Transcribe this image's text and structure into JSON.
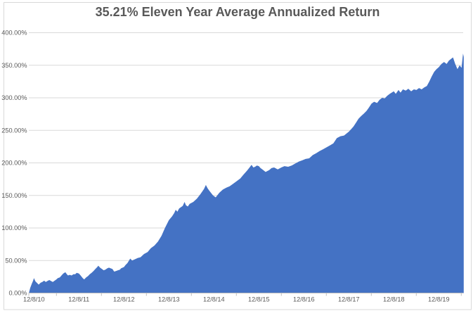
{
  "chart_data": {
    "type": "area",
    "title": "35.21% Eleven Year Average Annualized Return",
    "xlabel": "",
    "ylabel": "",
    "ylim": [
      0,
      400
    ],
    "y_tick_step": 50,
    "grid": true,
    "legend": false,
    "y_tick_labels": [
      "400.00%",
      "350.00%",
      "300.00%",
      "250.00%",
      "200.00%",
      "150.00%",
      "100.00%",
      "50.00%",
      "0.00%"
    ],
    "x_tick_labels": [
      "12/8/10",
      "12/8/11",
      "12/8/12",
      "12/8/13",
      "12/8/14",
      "12/8/15",
      "12/8/16",
      "12/8/17",
      "12/8/18",
      "12/8/19"
    ],
    "x_origin_date": "2010-12-08",
    "series": [
      {
        "points": [
          [
            "2010-10-28",
            0
          ],
          [
            "2010-11-08",
            8
          ],
          [
            "2010-11-20",
            14
          ],
          [
            "2010-12-01",
            19
          ],
          [
            "2010-12-08",
            23
          ],
          [
            "2010-12-20",
            18
          ],
          [
            "2011-01-05",
            15
          ],
          [
            "2011-01-15",
            13
          ],
          [
            "2011-02-01",
            16
          ],
          [
            "2011-02-14",
            17
          ],
          [
            "2011-03-01",
            19
          ],
          [
            "2011-03-14",
            17
          ],
          [
            "2011-04-01",
            19
          ],
          [
            "2011-04-12",
            20
          ],
          [
            "2011-05-01",
            18
          ],
          [
            "2011-05-10",
            17
          ],
          [
            "2011-06-01",
            20
          ],
          [
            "2011-06-08",
            21
          ],
          [
            "2011-06-20",
            23
          ],
          [
            "2011-07-06",
            24
          ],
          [
            "2011-07-20",
            27
          ],
          [
            "2011-08-03",
            30
          ],
          [
            "2011-08-20",
            32
          ],
          [
            "2011-09-01",
            29
          ],
          [
            "2011-09-11",
            27
          ],
          [
            "2011-09-25",
            28
          ],
          [
            "2011-10-10",
            27
          ],
          [
            "2011-10-25",
            29
          ],
          [
            "2011-11-08",
            29
          ],
          [
            "2011-11-20",
            31
          ],
          [
            "2011-12-08",
            30
          ],
          [
            "2011-12-22",
            27
          ],
          [
            "2012-01-08",
            23
          ],
          [
            "2012-01-20",
            21
          ],
          [
            "2012-02-05",
            24
          ],
          [
            "2012-02-20",
            26
          ],
          [
            "2012-03-05",
            29
          ],
          [
            "2012-03-20",
            31
          ],
          [
            "2012-04-05",
            34
          ],
          [
            "2012-04-20",
            37
          ],
          [
            "2012-05-05",
            40
          ],
          [
            "2012-05-14",
            42
          ],
          [
            "2012-05-28",
            39
          ],
          [
            "2012-06-12",
            37
          ],
          [
            "2012-06-26",
            35
          ],
          [
            "2012-07-10",
            36
          ],
          [
            "2012-07-25",
            38
          ],
          [
            "2012-08-08",
            39
          ],
          [
            "2012-08-22",
            38
          ],
          [
            "2012-09-05",
            37
          ],
          [
            "2012-09-20",
            33
          ],
          [
            "2012-10-05",
            34
          ],
          [
            "2012-10-20",
            35
          ],
          [
            "2012-11-05",
            36
          ],
          [
            "2012-11-14",
            38
          ],
          [
            "2012-12-08",
            40
          ],
          [
            "2012-12-20",
            43
          ],
          [
            "2013-01-05",
            46
          ],
          [
            "2013-01-28",
            53
          ],
          [
            "2013-02-12",
            50
          ],
          [
            "2013-02-25",
            51
          ],
          [
            "2013-03-08",
            52
          ],
          [
            "2013-03-30",
            54
          ],
          [
            "2013-04-21",
            55
          ],
          [
            "2013-05-20",
            60
          ],
          [
            "2013-06-18",
            63
          ],
          [
            "2013-07-14",
            69
          ],
          [
            "2013-08-12",
            73
          ],
          [
            "2013-09-10",
            79
          ],
          [
            "2013-10-09",
            88
          ],
          [
            "2013-11-06",
            100
          ],
          [
            "2013-12-08",
            112
          ],
          [
            "2014-01-03",
            118
          ],
          [
            "2014-01-20",
            123
          ],
          [
            "2014-02-01",
            128
          ],
          [
            "2014-02-15",
            125
          ],
          [
            "2014-03-01",
            130
          ],
          [
            "2014-03-30",
            134
          ],
          [
            "2014-04-14",
            140
          ],
          [
            "2014-04-25",
            135
          ],
          [
            "2014-05-10",
            133
          ],
          [
            "2014-05-25",
            137
          ],
          [
            "2014-06-24",
            140
          ],
          [
            "2014-07-23",
            145
          ],
          [
            "2014-08-21",
            152
          ],
          [
            "2014-09-19",
            160
          ],
          [
            "2014-10-04",
            166
          ],
          [
            "2014-10-18",
            161
          ],
          [
            "2014-11-02",
            157
          ],
          [
            "2014-12-01",
            150
          ],
          [
            "2014-12-23",
            147
          ],
          [
            "2015-01-21",
            154
          ],
          [
            "2015-02-19",
            159
          ],
          [
            "2015-03-20",
            162
          ],
          [
            "2015-04-15",
            164
          ],
          [
            "2015-05-14",
            168
          ],
          [
            "2015-06-12",
            172
          ],
          [
            "2015-07-10",
            176
          ],
          [
            "2015-08-05",
            182
          ],
          [
            "2015-09-03",
            188
          ],
          [
            "2015-09-20",
            192
          ],
          [
            "2015-10-10",
            197
          ],
          [
            "2015-10-25",
            193
          ],
          [
            "2015-11-08",
            194
          ],
          [
            "2015-11-22",
            196
          ],
          [
            "2015-12-08",
            195
          ],
          [
            "2015-12-22",
            192
          ],
          [
            "2016-01-06",
            190
          ],
          [
            "2016-02-01",
            186
          ],
          [
            "2016-03-01",
            189
          ],
          [
            "2016-03-20",
            192
          ],
          [
            "2016-04-10",
            193
          ],
          [
            "2016-05-10",
            190
          ],
          [
            "2016-06-08",
            193
          ],
          [
            "2016-07-03",
            195
          ],
          [
            "2016-08-02",
            194
          ],
          [
            "2016-08-31",
            196
          ],
          [
            "2016-09-29",
            199
          ],
          [
            "2016-10-28",
            202
          ],
          [
            "2016-11-26",
            204
          ],
          [
            "2016-12-22",
            206
          ],
          [
            "2017-01-20",
            207
          ],
          [
            "2017-02-18",
            212
          ],
          [
            "2017-03-19",
            215
          ],
          [
            "2017-04-14",
            218
          ],
          [
            "2017-05-13",
            221
          ],
          [
            "2017-06-11",
            224
          ],
          [
            "2017-07-09",
            227
          ],
          [
            "2017-08-04",
            230
          ],
          [
            "2017-09-02",
            238
          ],
          [
            "2017-10-01",
            241
          ],
          [
            "2017-10-30",
            242
          ],
          [
            "2017-12-08",
            248
          ],
          [
            "2017-12-28",
            252
          ],
          [
            "2018-01-15",
            256
          ],
          [
            "2018-02-05",
            262
          ],
          [
            "2018-02-25",
            268
          ],
          [
            "2018-03-18",
            272
          ],
          [
            "2018-04-10",
            276
          ],
          [
            "2018-05-01",
            280
          ],
          [
            "2018-05-20",
            285
          ],
          [
            "2018-06-10",
            291
          ],
          [
            "2018-07-01",
            294
          ],
          [
            "2018-07-25",
            292
          ],
          [
            "2018-08-15",
            297
          ],
          [
            "2018-09-05",
            300
          ],
          [
            "2018-09-25",
            299
          ],
          [
            "2018-10-15",
            303
          ],
          [
            "2018-11-05",
            306
          ],
          [
            "2018-12-08",
            310
          ],
          [
            "2018-12-24",
            306
          ],
          [
            "2019-01-15",
            312
          ],
          [
            "2019-02-01",
            308
          ],
          [
            "2019-02-20",
            313
          ],
          [
            "2019-03-15",
            311
          ],
          [
            "2019-04-05",
            314
          ],
          [
            "2019-04-28",
            310
          ],
          [
            "2019-05-20",
            313
          ],
          [
            "2019-06-10",
            312
          ],
          [
            "2019-07-01",
            315
          ],
          [
            "2019-07-22",
            313
          ],
          [
            "2019-08-12",
            316
          ],
          [
            "2019-09-02",
            318
          ],
          [
            "2019-09-22",
            325
          ],
          [
            "2019-10-12",
            333
          ],
          [
            "2019-11-01",
            340
          ],
          [
            "2019-11-20",
            344
          ],
          [
            "2019-12-08",
            347
          ],
          [
            "2019-12-30",
            352
          ],
          [
            "2020-01-20",
            355
          ],
          [
            "2020-02-10",
            352
          ],
          [
            "2020-02-28",
            357
          ],
          [
            "2020-03-18",
            360
          ],
          [
            "2020-04-02",
            362
          ],
          [
            "2020-04-20",
            352
          ],
          [
            "2020-05-08",
            344
          ],
          [
            "2020-05-26",
            350
          ],
          [
            "2020-06-10",
            346
          ],
          [
            "2020-06-22",
            368
          ],
          [
            "2020-06-28",
            363
          ]
        ]
      }
    ]
  },
  "colors": {
    "area_fill": "#4472C4",
    "title_text": "#595959",
    "axis_label_text": "#595959",
    "gridline": "#D9D9D9",
    "axis_line": "#BFBFBF",
    "chart_border": "#D9D9D9",
    "background": "#FFFFFF"
  }
}
